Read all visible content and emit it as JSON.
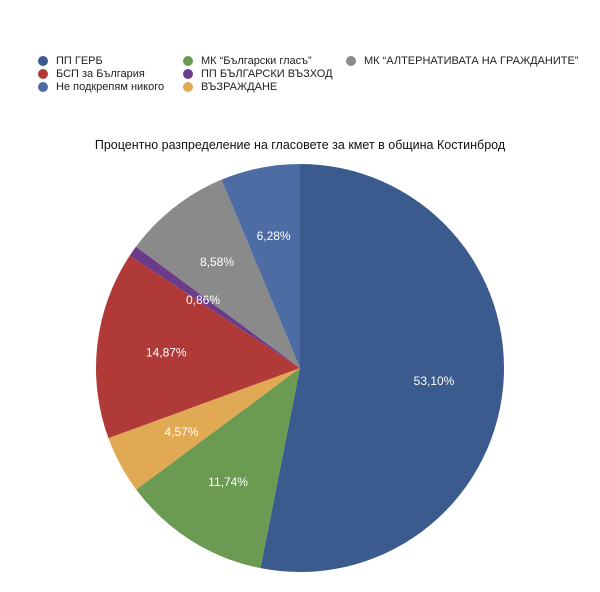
{
  "chart_data": {
    "type": "pie",
    "title": "Процентно разпределение на гласовете за кмет в община Костинброд",
    "legend_position": "top-left",
    "slices": [
      {
        "label": "ПП ГЕРБ",
        "value": 53.1,
        "display": "53,10%",
        "color": "#3b5a8e"
      },
      {
        "label": "МК “Български гласъ”",
        "value": 11.74,
        "display": "11,74%",
        "color": "#6b9a52"
      },
      {
        "label": "ВЪЗРАЖДАНЕ",
        "value": 4.57,
        "display": "4,57%",
        "color": "#e1a954"
      },
      {
        "label": "БСП за България",
        "value": 14.87,
        "display": "14,87%",
        "color": "#b03a37"
      },
      {
        "label": "ПП БЪЛГАРСКИ ВЪЗХОД",
        "value": 0.86,
        "display": "0,86%",
        "color": "#6b3b8a"
      },
      {
        "label": "МК “АЛТЕРНАТИВАТА НА ГРАЖДАНИТЕ”",
        "value": 8.58,
        "display": "8,58%",
        "color": "#8a8a8a"
      },
      {
        "label": "Не подкрепям никого",
        "value": 6.28,
        "display": "6,28%",
        "color": "#4c6ca3"
      }
    ],
    "legend_order": [
      0,
      3,
      6,
      1,
      4,
      2,
      5
    ]
  }
}
